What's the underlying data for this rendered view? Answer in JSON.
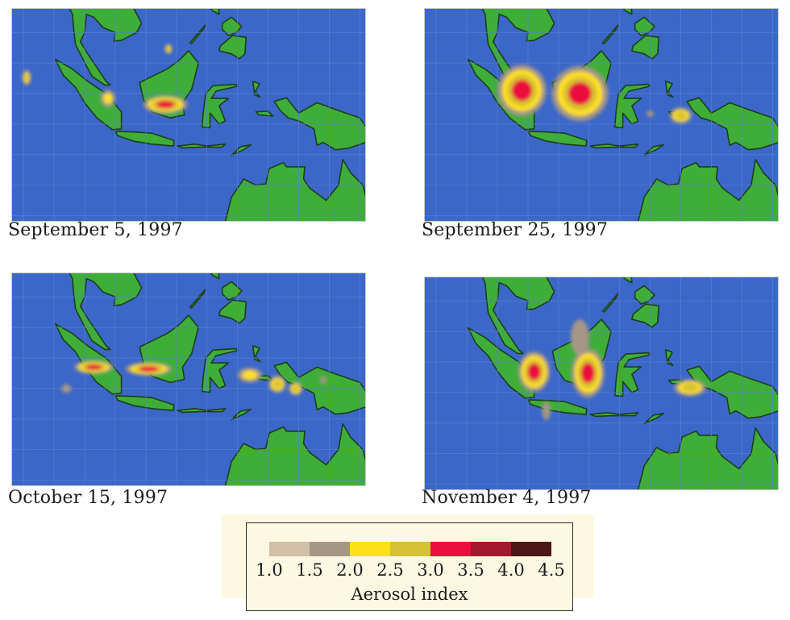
{
  "colors": {
    "ocean": "#3b67c9",
    "land": "#3fae39",
    "grid": "#5b7fd0",
    "coast": "#1d3d1a"
  },
  "maps": [
    {
      "id": "sep5",
      "caption": "September 5, 1997",
      "levels": [
        1,
        2,
        3,
        4
      ],
      "plumes": [
        {
          "lon": 113.2,
          "lat": -1.8,
          "rx": 3.6,
          "ry": 1.5,
          "level": 4
        },
        {
          "lon": 103.8,
          "lat": -0.8,
          "rx": 1.2,
          "ry": 1.4,
          "level": 2
        },
        {
          "lon": 90.5,
          "lat": 2.6,
          "rx": 0.7,
          "ry": 1.2,
          "level": 3
        },
        {
          "lon": 113.7,
          "lat": 7.3,
          "rx": 0.6,
          "ry": 0.8,
          "level": 3
        }
      ]
    },
    {
      "id": "sep25",
      "caption": "September 25, 1997",
      "levels": [
        1,
        2,
        3,
        4
      ],
      "plumes": [
        {
          "lon": 104.0,
          "lat": 0.5,
          "rx": 4.0,
          "ry": 4.2,
          "level": 4
        },
        {
          "lon": 113.5,
          "lat": 0.0,
          "rx": 4.6,
          "ry": 4.5,
          "level": 4
        },
        {
          "lon": 130.0,
          "lat": -3.6,
          "rx": 1.8,
          "ry": 1.3,
          "level": 3
        },
        {
          "lon": 125.0,
          "lat": -3.3,
          "rx": 0.6,
          "ry": 0.5,
          "level": 1
        }
      ]
    },
    {
      "id": "oct15",
      "caption": "October 15, 1997",
      "levels": [
        1,
        2,
        3,
        4
      ],
      "plumes": [
        {
          "lon": 101.5,
          "lat": -1.5,
          "rx": 3.2,
          "ry": 1.1,
          "level": 4
        },
        {
          "lon": 110.5,
          "lat": -1.8,
          "rx": 3.8,
          "ry": 1.1,
          "level": 4
        },
        {
          "lon": 127.0,
          "lat": -2.8,
          "rx": 2.0,
          "ry": 1.2,
          "level": 2
        },
        {
          "lon": 131.5,
          "lat": -4.3,
          "rx": 1.4,
          "ry": 1.4,
          "level": 3
        },
        {
          "lon": 134.5,
          "lat": -5.0,
          "rx": 1.1,
          "ry": 1.1,
          "level": 3
        },
        {
          "lon": 97.0,
          "lat": -5.0,
          "rx": 0.8,
          "ry": 0.7,
          "level": 1
        },
        {
          "lon": 139.0,
          "lat": -3.6,
          "rx": 0.6,
          "ry": 0.6,
          "level": 1
        }
      ]
    },
    {
      "id": "nov4",
      "caption": "November 4, 1997",
      "levels": [
        1,
        2,
        3,
        4
      ],
      "plumes": [
        {
          "lon": 106.0,
          "lat": -1.6,
          "rx": 2.6,
          "ry": 3.3,
          "level": 4
        },
        {
          "lon": 114.8,
          "lat": -1.8,
          "rx": 2.7,
          "ry": 4.0,
          "level": 4
        },
        {
          "lon": 113.5,
          "lat": 4.0,
          "rx": 1.5,
          "ry": 3.0,
          "level": 1
        },
        {
          "lon": 131.5,
          "lat": -4.2,
          "rx": 2.6,
          "ry": 1.4,
          "level": 3
        },
        {
          "lon": 108.0,
          "lat": -8.0,
          "rx": 0.7,
          "ry": 1.5,
          "level": 1
        }
      ]
    }
  ],
  "legend": {
    "title": "Aerosol index",
    "ticks": [
      "1.0",
      "1.5",
      "2.0",
      "2.5",
      "3.0",
      "3.5",
      "4.0",
      "4.5"
    ],
    "bins": [
      {
        "from": 1.0,
        "to": 1.5,
        "color": "#d2bfa7"
      },
      {
        "from": 1.5,
        "to": 2.0,
        "color": "#a59686"
      },
      {
        "from": 2.0,
        "to": 2.5,
        "color": "#ffe019"
      },
      {
        "from": 2.5,
        "to": 3.0,
        "color": "#d7c136"
      },
      {
        "from": 3.0,
        "to": 3.5,
        "color": "#ea0f3d"
      },
      {
        "from": 3.5,
        "to": 4.0,
        "color": "#a4182c"
      },
      {
        "from": 4.0,
        "to": 4.5,
        "color": "#4e1616"
      }
    ]
  }
}
